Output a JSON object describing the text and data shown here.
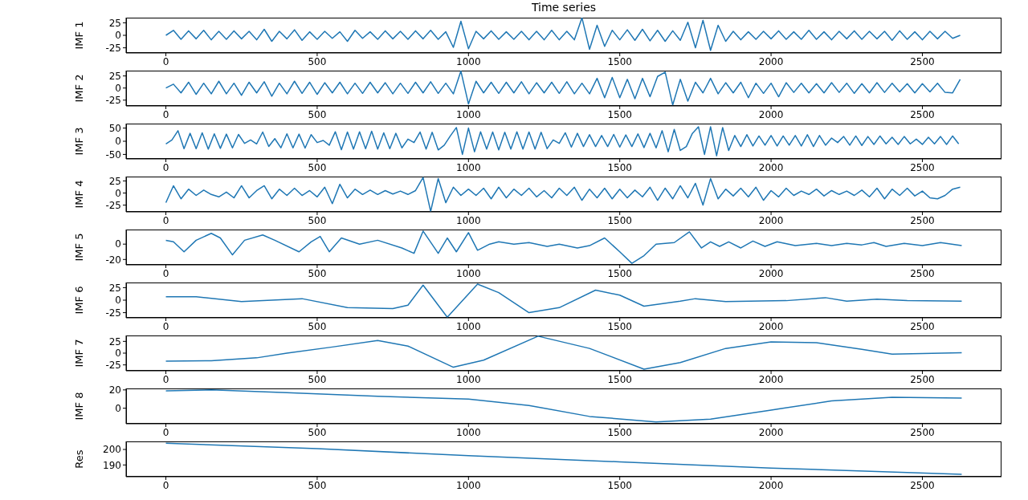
{
  "chart_data": [
    {
      "type": "line",
      "title": "Time series",
      "ylabel": "IMF 1",
      "color": "#1f77b4",
      "xlim": [
        -131.5,
        2761.5
      ],
      "ylim": [
        -35.3,
        35.3
      ],
      "xticks": [
        0,
        500,
        1000,
        1500,
        2000,
        2500
      ],
      "yticks": [
        -25,
        0,
        25
      ],
      "x": [
        0,
        25,
        50,
        75,
        100,
        125,
        150,
        175,
        200,
        225,
        250,
        275,
        300,
        325,
        350,
        375,
        400,
        425,
        450,
        475,
        500,
        525,
        550,
        575,
        600,
        625,
        650,
        675,
        700,
        725,
        750,
        775,
        800,
        825,
        850,
        875,
        900,
        925,
        950,
        975,
        1000,
        1025,
        1050,
        1075,
        1100,
        1125,
        1150,
        1175,
        1200,
        1225,
        1250,
        1275,
        1300,
        1325,
        1350,
        1375,
        1400,
        1425,
        1450,
        1475,
        1500,
        1525,
        1550,
        1575,
        1600,
        1625,
        1650,
        1675,
        1700,
        1725,
        1750,
        1775,
        1800,
        1825,
        1850,
        1875,
        1900,
        1925,
        1950,
        1975,
        2000,
        2025,
        2050,
        2075,
        2100,
        2125,
        2150,
        2175,
        2200,
        2225,
        2250,
        2275,
        2300,
        2325,
        2350,
        2375,
        2400,
        2425,
        2450,
        2475,
        2500,
        2525,
        2550,
        2575,
        2600,
        2625
      ],
      "values": [
        0,
        10,
        -8,
        9,
        -7,
        10,
        -9,
        8,
        -8,
        9,
        -7,
        8,
        -9,
        12,
        -12,
        8,
        -7,
        11,
        -10,
        7,
        -8,
        8,
        -6,
        7,
        -12,
        10,
        -6,
        7,
        -8,
        9,
        -7,
        8,
        -8,
        9,
        -7,
        10,
        -8,
        7,
        -24,
        28,
        -27,
        8,
        -7,
        9,
        -8,
        7,
        -8,
        8,
        -9,
        8,
        -9,
        10,
        -9,
        8,
        -9,
        35,
        -28,
        20,
        -22,
        10,
        -9,
        11,
        -10,
        12,
        -11,
        10,
        -12,
        9,
        -10,
        26,
        -25,
        30,
        -30,
        20,
        -12,
        8,
        -9,
        7,
        -8,
        8,
        -7,
        9,
        -8,
        7,
        -8,
        10,
        -8,
        7,
        -9,
        8,
        -7,
        9,
        -8,
        8,
        -7,
        8,
        -10,
        9,
        -8,
        7,
        -9,
        8,
        -7,
        8,
        -6,
        0
      ]
    },
    {
      "type": "line",
      "ylabel": "IMF 2",
      "color": "#1f77b4",
      "xlim": [
        -131.5,
        2761.5
      ],
      "ylim": [
        -37,
        36
      ],
      "xticks": [
        0,
        500,
        1000,
        1500,
        2000,
        2500
      ],
      "yticks": [
        -25,
        0,
        25
      ],
      "x": [
        0,
        25,
        50,
        75,
        100,
        125,
        150,
        175,
        200,
        225,
        250,
        275,
        300,
        325,
        350,
        375,
        400,
        425,
        450,
        475,
        500,
        525,
        550,
        575,
        600,
        625,
        650,
        675,
        700,
        725,
        750,
        775,
        800,
        825,
        850,
        875,
        900,
        925,
        950,
        975,
        1000,
        1025,
        1050,
        1075,
        1100,
        1125,
        1150,
        1175,
        1200,
        1225,
        1250,
        1275,
        1300,
        1325,
        1350,
        1375,
        1400,
        1425,
        1450,
        1475,
        1500,
        1525,
        1550,
        1575,
        1600,
        1625,
        1650,
        1675,
        1700,
        1725,
        1750,
        1775,
        1800,
        1825,
        1850,
        1875,
        1900,
        1925,
        1950,
        1975,
        2000,
        2025,
        2050,
        2075,
        2100,
        2125,
        2150,
        2175,
        2200,
        2225,
        2250,
        2275,
        2300,
        2325,
        2350,
        2375,
        2400,
        2425,
        2450,
        2475,
        2500,
        2525,
        2550,
        2575,
        2600,
        2625
      ],
      "values": [
        0,
        8,
        -10,
        12,
        -13,
        10,
        -12,
        14,
        -12,
        10,
        -15,
        12,
        -10,
        13,
        -17,
        10,
        -12,
        14,
        -11,
        12,
        -13,
        11,
        -10,
        12,
        -12,
        10,
        -11,
        12,
        -10,
        11,
        -12,
        10,
        -11,
        12,
        -10,
        13,
        -11,
        10,
        -12,
        35,
        -33,
        14,
        -10,
        12,
        -11,
        12,
        -10,
        13,
        -12,
        11,
        -10,
        12,
        -11,
        13,
        -12,
        10,
        -12,
        20,
        -20,
        22,
        -20,
        18,
        -22,
        20,
        -18,
        24,
        33,
        -35,
        18,
        -27,
        12,
        -10,
        20,
        -12,
        11,
        -10,
        12,
        -20,
        10,
        -11,
        10,
        -18,
        11,
        -9,
        10,
        -10,
        9,
        -10,
        11,
        -9,
        10,
        -11,
        9,
        -10,
        11,
        -9,
        10,
        -8,
        9,
        -10,
        9,
        -8,
        10,
        -9,
        -10,
        18
      ]
    },
    {
      "type": "line",
      "ylabel": "IMF 3",
      "color": "#1f77b4",
      "xlim": [
        -131.5,
        2761.5
      ],
      "ylim": [
        -67,
        67
      ],
      "xticks": [
        0,
        500,
        1000,
        1500,
        2000,
        2500
      ],
      "yticks": [
        -50,
        0,
        50
      ],
      "x": [
        0,
        20,
        40,
        60,
        80,
        100,
        120,
        140,
        160,
        180,
        200,
        220,
        240,
        260,
        280,
        300,
        320,
        340,
        360,
        380,
        400,
        420,
        440,
        460,
        480,
        500,
        520,
        540,
        560,
        580,
        600,
        620,
        640,
        660,
        680,
        700,
        720,
        740,
        760,
        780,
        800,
        820,
        840,
        860,
        880,
        900,
        920,
        940,
        960,
        980,
        1000,
        1020,
        1040,
        1060,
        1080,
        1100,
        1120,
        1140,
        1160,
        1180,
        1200,
        1220,
        1240,
        1260,
        1280,
        1300,
        1320,
        1340,
        1360,
        1380,
        1400,
        1420,
        1440,
        1460,
        1480,
        1500,
        1520,
        1540,
        1560,
        1580,
        1600,
        1620,
        1640,
        1660,
        1680,
        1700,
        1720,
        1740,
        1760,
        1780,
        1800,
        1820,
        1840,
        1860,
        1880,
        1900,
        1920,
        1940,
        1960,
        1980,
        2000,
        2020,
        2040,
        2060,
        2080,
        2100,
        2120,
        2140,
        2160,
        2180,
        2200,
        2220,
        2240,
        2260,
        2280,
        2300,
        2320,
        2340,
        2360,
        2380,
        2400,
        2420,
        2440,
        2460,
        2480,
        2500,
        2520,
        2540,
        2560,
        2580,
        2600,
        2620
      ],
      "values": [
        -10,
        5,
        40,
        -28,
        30,
        -28,
        32,
        -30,
        28,
        -27,
        27,
        -25,
        26,
        -8,
        5,
        -10,
        35,
        -20,
        10,
        -25,
        28,
        -25,
        27,
        -26,
        25,
        -5,
        3,
        -15,
        36,
        -32,
        35,
        -30,
        36,
        -28,
        38,
        -30,
        32,
        -28,
        30,
        -25,
        8,
        -5,
        35,
        -30,
        34,
        -33,
        -15,
        20,
        52,
        -50,
        50,
        -40,
        36,
        -30,
        35,
        -33,
        34,
        -30,
        36,
        -30,
        35,
        -30,
        34,
        -28,
        5,
        -8,
        32,
        -22,
        30,
        -20,
        25,
        -20,
        22,
        -20,
        26,
        -22,
        24,
        -20,
        28,
        -24,
        30,
        -25,
        40,
        -40,
        45,
        -35,
        -20,
        30,
        55,
        -50,
        55,
        -55,
        52,
        -35,
        22,
        -20,
        25,
        -18,
        20,
        -15,
        22,
        -18,
        20,
        -15,
        22,
        -18,
        25,
        -20,
        22,
        -15,
        12,
        -5,
        18,
        -15,
        20,
        -16,
        18,
        -12,
        20,
        -10,
        15,
        -12,
        18,
        -10,
        8,
        -12,
        15,
        -10,
        18,
        -12,
        20,
        -10
      ]
    },
    {
      "type": "line",
      "ylabel": "IMF 4",
      "color": "#1f77b4",
      "xlim": [
        -131.5,
        2761.5
      ],
      "ylim": [
        -39,
        34
      ],
      "xticks": [
        0,
        500,
        1000,
        1500,
        2000,
        2500
      ],
      "yticks": [
        -25,
        0,
        25
      ],
      "x": [
        0,
        25,
        50,
        75,
        100,
        125,
        150,
        175,
        200,
        225,
        250,
        275,
        300,
        325,
        350,
        375,
        400,
        425,
        450,
        475,
        500,
        525,
        550,
        575,
        600,
        625,
        650,
        675,
        700,
        725,
        750,
        775,
        800,
        825,
        850,
        875,
        900,
        925,
        950,
        975,
        1000,
        1025,
        1050,
        1075,
        1100,
        1125,
        1150,
        1175,
        1200,
        1225,
        1250,
        1275,
        1300,
        1325,
        1350,
        1375,
        1400,
        1425,
        1450,
        1475,
        1500,
        1525,
        1550,
        1575,
        1600,
        1625,
        1650,
        1675,
        1700,
        1725,
        1750,
        1775,
        1800,
        1825,
        1850,
        1875,
        1900,
        1925,
        1950,
        1975,
        2000,
        2025,
        2050,
        2075,
        2100,
        2125,
        2150,
        2175,
        2200,
        2225,
        2250,
        2275,
        2300,
        2325,
        2350,
        2375,
        2400,
        2425,
        2450,
        2475,
        2500,
        2525,
        2550,
        2575,
        2600,
        2625
      ],
      "values": [
        -20,
        15,
        -12,
        8,
        -5,
        6,
        -3,
        -8,
        2,
        -10,
        15,
        -10,
        5,
        15,
        -12,
        8,
        -5,
        10,
        -5,
        5,
        -8,
        12,
        -22,
        18,
        -10,
        8,
        -3,
        6,
        -3,
        5,
        -2,
        4,
        -3,
        5,
        32,
        -38,
        30,
        -20,
        12,
        -5,
        8,
        -5,
        10,
        -12,
        12,
        -10,
        8,
        -5,
        10,
        -8,
        5,
        -10,
        10,
        -5,
        12,
        -15,
        8,
        -10,
        10,
        -12,
        8,
        -10,
        6,
        -8,
        12,
        -15,
        10,
        -12,
        15,
        -10,
        20,
        -25,
        30,
        -12,
        8,
        -6,
        10,
        -8,
        12,
        -15,
        5,
        -8,
        10,
        -5,
        4,
        -3,
        8,
        -6,
        5,
        -3,
        4,
        -5,
        6,
        -8,
        10,
        -12,
        8,
        -5,
        10,
        -6,
        4,
        -10,
        -12,
        -5,
        8,
        12
      ]
    },
    {
      "type": "line",
      "ylabel": "IMF 5",
      "color": "#1f77b4",
      "xlim": [
        -131.5,
        2761.5
      ],
      "ylim": [
        -27,
        19
      ],
      "xticks": [
        0,
        500,
        1000,
        1500,
        2000,
        2500
      ],
      "yticks": [
        -20,
        0
      ],
      "x": [
        0,
        25,
        60,
        100,
        150,
        180,
        220,
        260,
        320,
        360,
        440,
        480,
        510,
        540,
        580,
        640,
        700,
        780,
        820,
        850,
        900,
        930,
        960,
        1000,
        1030,
        1070,
        1100,
        1150,
        1200,
        1260,
        1300,
        1360,
        1400,
        1450,
        1500,
        1540,
        1580,
        1620,
        1680,
        1730,
        1770,
        1800,
        1830,
        1860,
        1900,
        1940,
        1980,
        2020,
        2080,
        2150,
        2200,
        2250,
        2300,
        2340,
        2380,
        2440,
        2500,
        2560,
        2630
      ],
      "values": [
        5,
        3,
        -10,
        5,
        14,
        8,
        -14,
        5,
        12,
        5,
        -10,
        3,
        10,
        -10,
        8,
        0,
        5,
        -5,
        -12,
        17,
        -12,
        8,
        -10,
        15,
        -8,
        0,
        3,
        0,
        2,
        -3,
        0,
        -5,
        -2,
        8,
        -10,
        -25,
        -15,
        0,
        2,
        16,
        -5,
        3,
        -3,
        3,
        -5,
        4,
        -3,
        3,
        -2,
        1,
        -2,
        1,
        -1,
        2,
        -3,
        1,
        -2,
        2,
        -2
      ]
    },
    {
      "type": "line",
      "ylabel": "IMF 6",
      "color": "#1f77b4",
      "xlim": [
        -131.5,
        2761.5
      ],
      "ylim": [
        -35.3,
        35.3
      ],
      "xticks": [
        0,
        500,
        1000,
        1500,
        2000,
        2500
      ],
      "yticks": [
        -25,
        0,
        25
      ],
      "x": [
        0,
        100,
        250,
        450,
        600,
        750,
        800,
        850,
        930,
        1030,
        1100,
        1200,
        1300,
        1420,
        1500,
        1580,
        1700,
        1750,
        1850,
        2050,
        2180,
        2250,
        2350,
        2450,
        2630
      ],
      "values": [
        7,
        7,
        -3,
        3,
        -15,
        -17,
        -10,
        30,
        -34,
        32,
        15,
        -25,
        -15,
        20,
        10,
        -12,
        -2,
        3,
        -3,
        -1,
        5,
        -2,
        2,
        -1,
        -2
      ]
    },
    {
      "type": "line",
      "ylabel": "IMF 7",
      "color": "#1f77b4",
      "xlim": [
        -131.5,
        2761.5
      ],
      "ylim": [
        -37.5,
        37.5
      ],
      "xticks": [
        0,
        500,
        1000,
        1500,
        2000,
        2500
      ],
      "yticks": [
        -25,
        0,
        25
      ],
      "x": [
        0,
        150,
        300,
        400,
        550,
        700,
        800,
        950,
        1050,
        1230,
        1400,
        1580,
        1700,
        1850,
        2000,
        2150,
        2300,
        2400,
        2500,
        2630
      ],
      "values": [
        -17,
        -16,
        -10,
        0,
        13,
        27,
        15,
        -30,
        -15,
        36,
        10,
        -34,
        -20,
        10,
        24,
        22,
        8,
        -2,
        -1,
        1
      ]
    },
    {
      "type": "line",
      "ylabel": "IMF 8",
      "color": "#1f77b4",
      "xlim": [
        -131.5,
        2761.5
      ],
      "ylim": [
        -17,
        21.6
      ],
      "xticks": [
        0,
        500,
        1000,
        1500,
        2000,
        2500
      ],
      "yticks": [
        0,
        20
      ],
      "x": [
        0,
        150,
        400,
        700,
        1000,
        1200,
        1400,
        1620,
        1800,
        2000,
        2200,
        2400,
        2630
      ],
      "values": [
        19,
        20,
        17,
        13,
        10,
        3,
        -9,
        -15,
        -12,
        -2,
        8,
        12,
        11
      ]
    },
    {
      "type": "line",
      "ylabel": "Res",
      "color": "#1f77b4",
      "xlim": [
        -131.5,
        2761.5
      ],
      "ylim": [
        182.4,
        205.2
      ],
      "xticks": [
        0,
        500,
        1000,
        1500,
        2000,
        2500
      ],
      "yticks": [
        190,
        200
      ],
      "x": [
        0,
        500,
        1000,
        1500,
        2000,
        2630
      ],
      "values": [
        204,
        200.5,
        196,
        192,
        188,
        184
      ]
    }
  ]
}
